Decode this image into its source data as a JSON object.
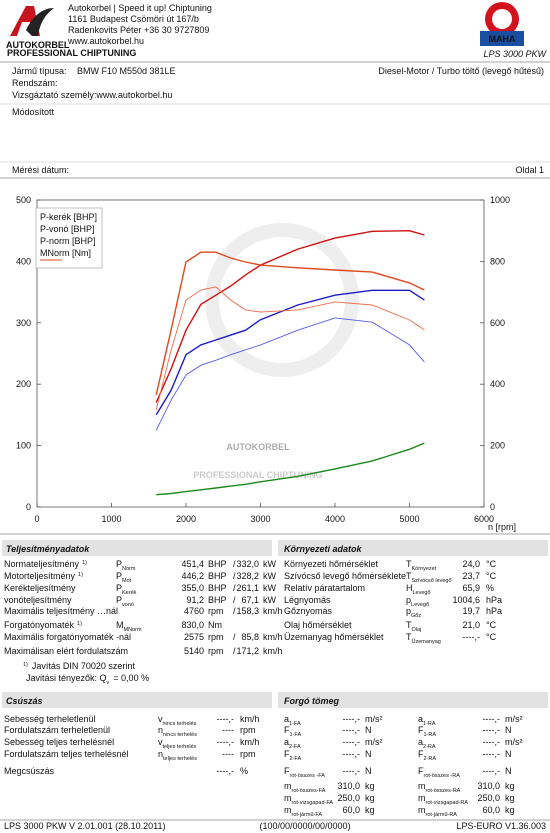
{
  "header": {
    "logo_name": "AUTOKORBEL",
    "logo_sub": "PROFESSIONAL CHIPTUNING",
    "company": [
      "Autokorbel | Speed it up! Chiptuning",
      "1161 Budapest Csömöri út 167/b",
      "Radenkovits Péter +36 30 9727809",
      "www.autokorbel.hu"
    ],
    "maha": "MAHA",
    "product": "LPS 3000 PKW"
  },
  "vehicle": {
    "type_label": "Jármű típusa:",
    "type_value": "BMW F10 M550d 381LE",
    "engine": "Diesel-Motor / Turbo töltő (levegő hűtésű)",
    "plate_label": "Rendszám:",
    "examiner": "Vizsgáztató személy:www.autokorbel.hu",
    "note": "Módosított",
    "date_label": "Mérési dátum:",
    "page": "Oldal 1"
  },
  "chart_data": {
    "type": "line",
    "x_label": "n [rpm]",
    "x": [
      1600,
      1800,
      2000,
      2200,
      2400,
      2600,
      2800,
      3000,
      3500,
      4000,
      4500,
      5000,
      5200
    ],
    "xlim": [
      0,
      6000
    ],
    "xticks": [
      0,
      1000,
      2000,
      3000,
      4000,
      5000,
      6000
    ],
    "ylim": [
      0,
      500
    ],
    "yticks": [
      0,
      100,
      200,
      300,
      400,
      500
    ],
    "y2lim": [
      0,
      1000
    ],
    "y2ticks": [
      0,
      200,
      400,
      600,
      800,
      1000
    ],
    "y2_color": "#e0481c",
    "watermark": {
      "title": "AUTOKORBEL",
      "subtitle": "PROFESSIONAL CHIPTUNING"
    },
    "series": [
      {
        "name": "P-kerék [BHP]",
        "color": "#1c1cc8",
        "values": [
          150,
          190,
          248,
          264,
          272,
          280,
          288,
          305,
          329,
          345,
          353,
          353,
          337
        ]
      },
      {
        "name": "P-vonó [BHP]",
        "color": "#1a8a1a",
        "values": [
          20,
          22,
          25,
          28,
          31,
          34,
          37,
          41,
          50,
          62,
          75,
          94,
          104
        ]
      },
      {
        "name": "P-norm [BHP]",
        "color": "#d01010",
        "values": [
          170,
          225,
          288,
          330,
          345,
          360,
          378,
          394,
          420,
          438,
          449,
          450,
          443
        ]
      },
      {
        "name": "MNorm [Nm]",
        "color": "#e0481c",
        "axis": "y2",
        "values": [
          365,
          577,
          798,
          830,
          830,
          811,
          798,
          788,
          779,
          772,
          765,
          730,
          707
        ]
      },
      {
        "color": "#5a5af0",
        "values": [
          125,
          174,
          215,
          231,
          239,
          248,
          256,
          264,
          288,
          308,
          301,
          264,
          236
        ]
      },
      {
        "color": "#f06a4a",
        "axis": "y2",
        "values": [
          316,
          511,
          674,
          707,
          717,
          674,
          642,
          635,
          642,
          668,
          658,
          609,
          577
        ]
      }
    ]
  },
  "performance": {
    "title": "Teljesítményadatok",
    "rows": [
      {
        "label": "Normateljesítmény",
        "sup": "1)",
        "symbol": "P",
        "symbol_sub": "Norm",
        "value1": "451,4",
        "unit1": "BHP",
        "sep": "/",
        "value2": "332,0",
        "unit2": "kW",
        "color": "#d01010",
        "value_color": "#d01010"
      },
      {
        "label": "Motorteljesítmény",
        "sup": "1)",
        "symbol": "P",
        "symbol_sub": "Mot",
        "value1": "446,2",
        "unit1": "BHP",
        "sep": "/",
        "value2": "328,2",
        "unit2": "kW",
        "color": "#d01010",
        "value_color": "#d01010"
      },
      {
        "label": "Kerékteljesítmény",
        "symbol": "P",
        "symbol_sub": "Kerék",
        "value1": "355,0",
        "unit1": "BHP",
        "sep": "/",
        "value2": "261,1",
        "unit2": "kW",
        "color": "#1c1cc8",
        "value_color": "#1c1cc8"
      },
      {
        "label": "vonóteljesítmény",
        "symbol": "P",
        "symbol_sub": "vonó",
        "value1": "91,2",
        "unit1": "BHP",
        "sep": "/",
        "value2": "67,1",
        "unit2": "kW",
        "color": "#1a8a1a",
        "value_color": "#1a8a1a"
      },
      {
        "label": "Maximális teljesítmény …nál",
        "value1": "4760",
        "unit1": "rpm",
        "sep": "/",
        "value2": "158,3",
        "unit2": "km/h",
        "color": "#111111",
        "value_color": "#888888"
      },
      {
        "label": "Forgatónyomaték",
        "sup": "1)",
        "symbol": "M",
        "symbol_sub": "MNorm",
        "value1": "830,0",
        "unit1": "Nm",
        "color": "#d01010",
        "value_color": "#d01010"
      },
      {
        "label": "Maximális forgatónyomaték -nál",
        "value1": "2575",
        "unit1": "rpm",
        "sep": "/",
        "value2": "85,8",
        "unit2": "km/h",
        "color": "#111111",
        "value_color": "#888888"
      },
      {
        "label": "Maximálisan elért fordulatszám",
        "value1": "5140",
        "unit1": "rpm",
        "sep": "/",
        "value2": "171,2",
        "unit2": "km/h",
        "color": "#111111",
        "value_color": "#888888"
      }
    ],
    "correction_sup": "1)",
    "correction": "Javítás DIN 70020 szerint",
    "factor_label": "Javitási tényezők: Q",
    "factor_sub": "v",
    "factor_value": "=    0,00 %"
  },
  "environment": {
    "title": "Környezeti adatok",
    "rows": [
      {
        "label": "Környezeti hőmérséklet",
        "symbol": "T",
        "symbol_sub": "Környezet",
        "value": "24,0",
        "unit": "°C"
      },
      {
        "label": "Szívócső levegő hőmérséklete",
        "symbol": "T",
        "symbol_sub": "Szívócső levegő",
        "value": "23,7",
        "unit": "°C"
      },
      {
        "label": "Relatív páratartalom",
        "symbol": "H",
        "symbol_sub": "Levegő",
        "value": "65,9",
        "unit": "%"
      },
      {
        "label": "Légnyomás",
        "symbol": "p",
        "symbol_sub": "Levegő",
        "value": "1004,6",
        "unit": "hPa"
      },
      {
        "label": "Gőznyomás",
        "symbol": "p",
        "symbol_sub": "Gőz",
        "value": "19,7",
        "unit": "hPa"
      },
      {
        "label": "Olaj hőmérséklet",
        "symbol": "T",
        "symbol_sub": "Olaj",
        "value": "21,0",
        "unit": "°C"
      },
      {
        "label": "Üzemanyag hőmérséklet",
        "symbol": "T",
        "symbol_sub": "Üzemanyag",
        "value": "----,-",
        "unit": "°C"
      }
    ]
  },
  "slip": {
    "title": "Csúszás",
    "rows": [
      {
        "label": "Sebesség terheletlenül",
        "symbol": "v",
        "symbol_sub": "nincs terhelés",
        "value": "----,-",
        "unit": "km/h"
      },
      {
        "label": "Fordulatszám terheletlenül",
        "symbol": "n",
        "symbol_sub": "nincs terhelés",
        "value": "----",
        "unit": "rpm"
      },
      {
        "label": "Sebesség teljes terhelésnél",
        "symbol": "v",
        "symbol_sub": "teljes terhelés",
        "value": "----,-",
        "unit": "km/h"
      },
      {
        "label": "Fordulatszám teljes terhelésnél",
        "symbol": "n",
        "symbol_sub": "teljes terhelés",
        "value": "----",
        "unit": "rpm"
      },
      {
        "label": "Megcsúszás",
        "value": "----,-",
        "unit": "%"
      }
    ]
  },
  "rotating_mass": {
    "title": "Forgó tömeg",
    "rows": [
      [
        {
          "symbol": "a",
          "symbol_sub": "1-FA",
          "value": "----,-",
          "unit": "m/s²"
        },
        {
          "symbol": "a",
          "symbol_sub": "1-RA",
          "value": "----,-",
          "unit": "m/s²"
        }
      ],
      [
        {
          "symbol": "F",
          "symbol_sub": "1-FA",
          "value": "----,-",
          "unit": "N"
        },
        {
          "symbol": "F",
          "symbol_sub": "1-RA",
          "value": "----,-",
          "unit": "N"
        }
      ],
      [
        {
          "symbol": "a",
          "symbol_sub": "2-FA",
          "value": "----,-",
          "unit": "m/s²"
        },
        {
          "symbol": "a",
          "symbol_sub": "2-RA",
          "value": "----,-",
          "unit": "m/s²"
        }
      ],
      [
        {
          "symbol": "F",
          "symbol_sub": "2-FA",
          "value": "----,-",
          "unit": "N"
        },
        {
          "symbol": "F",
          "symbol_sub": "2-RA",
          "value": "----,-",
          "unit": "N"
        }
      ],
      [
        {
          "symbol": "F",
          "symbol_sub": "rot-összes -FA",
          "value": "----,-",
          "unit": "N"
        },
        {
          "symbol": "F",
          "symbol_sub": "rot-összes -RA",
          "value": "----,-",
          "unit": "N"
        }
      ],
      [
        {
          "symbol": "m",
          "symbol_sub": "rot-összes-FA",
          "value": "310,0",
          "unit": "kg"
        },
        {
          "symbol": "m",
          "symbol_sub": "rot-összes-RA",
          "value": "310,0",
          "unit": "kg"
        }
      ],
      [
        {
          "symbol": "m",
          "symbol_sub": "rot-vizsgapad-FA",
          "value": "250,0",
          "unit": "kg"
        },
        {
          "symbol": "m",
          "symbol_sub": "rot-vizsgapad-RA",
          "value": "250,0",
          "unit": "kg"
        }
      ],
      [
        {
          "symbol": "m",
          "symbol_sub": "rot-jármű-FA",
          "value": "60,0",
          "unit": "kg"
        },
        {
          "symbol": "m",
          "symbol_sub": "rot-jármű-RA",
          "value": "60,0",
          "unit": "kg"
        }
      ]
    ]
  },
  "footer": {
    "left": "LPS 3000 PKW V 2.01.001 (28.10.2011)",
    "center": "(100/00/0000/00/0000)",
    "right": "LPS-EURO V1.36.003"
  }
}
